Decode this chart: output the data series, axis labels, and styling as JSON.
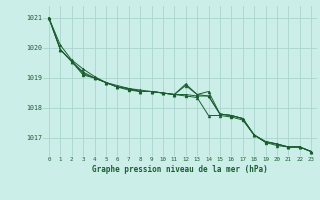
{
  "xlabel": "Graphe pression niveau de la mer (hPa)",
  "xlim": [
    -0.5,
    23.5
  ],
  "ylim": [
    1016.4,
    1021.4
  ],
  "yticks": [
    1017,
    1018,
    1019,
    1020,
    1021
  ],
  "xticks": [
    0,
    1,
    2,
    3,
    4,
    5,
    6,
    7,
    8,
    9,
    10,
    11,
    12,
    13,
    14,
    15,
    16,
    17,
    18,
    19,
    20,
    21,
    22,
    23
  ],
  "bg_color": "#cceee8",
  "grid_color": "#aad4cc",
  "line_color": "#1a5e30",
  "marker": "^",
  "series": [
    [
      1021.0,
      1020.1,
      1019.6,
      1019.3,
      1019.05,
      1018.85,
      1018.7,
      1018.65,
      1018.55,
      1018.55,
      1018.5,
      1018.45,
      1018.4,
      1018.35,
      1017.75,
      1017.75,
      1017.7,
      1017.6,
      1017.1,
      1016.85,
      1016.75,
      1016.7,
      1016.7,
      1016.55
    ],
    [
      1021.0,
      1019.95,
      1019.55,
      1019.2,
      1019.0,
      1018.85,
      1018.7,
      1018.65,
      1018.55,
      1018.55,
      1018.5,
      1018.45,
      1018.75,
      1018.45,
      1018.4,
      1017.8,
      1017.75,
      1017.65,
      1017.1,
      1016.88,
      1016.8,
      1016.7,
      1016.7,
      1016.55
    ],
    [
      1021.0,
      1019.95,
      1019.55,
      1019.15,
      1019.0,
      1018.85,
      1018.7,
      1018.6,
      1018.55,
      1018.55,
      1018.5,
      1018.45,
      1018.8,
      1018.45,
      1018.55,
      1017.8,
      1017.75,
      1017.65,
      1017.1,
      1016.88,
      1016.8,
      1016.7,
      1016.7,
      1016.55
    ],
    [
      1021.0,
      1019.95,
      1019.55,
      1019.1,
      1019.0,
      1018.85,
      1018.75,
      1018.65,
      1018.6,
      1018.55,
      1018.5,
      1018.45,
      1018.45,
      1018.4,
      1018.4,
      1017.8,
      1017.75,
      1017.65,
      1017.1,
      1016.88,
      1016.8,
      1016.7,
      1016.7,
      1016.55
    ]
  ]
}
